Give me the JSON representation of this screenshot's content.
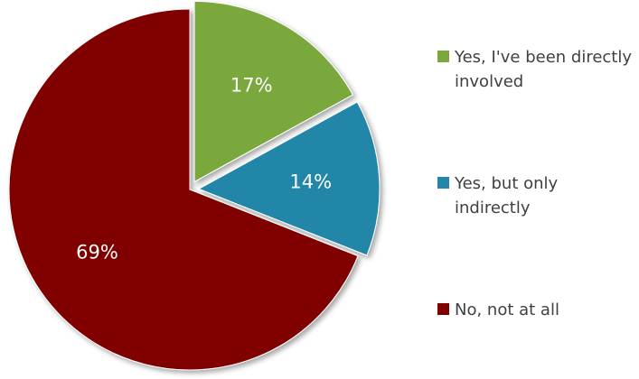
{
  "chart_data": {
    "type": "pie",
    "categories": [
      "Yes, I've been directly involved",
      "Yes, but only indirectly",
      "No, not at all"
    ],
    "values": [
      17,
      14,
      69
    ],
    "data_labels": [
      "17%",
      "14%",
      "69%"
    ],
    "colors": [
      "#7aa83c",
      "#2486a8",
      "#800000"
    ],
    "legend_position": "right",
    "exploded_slices": [
      "Yes, I've been directly involved",
      "Yes, but only indirectly"
    ],
    "title": ""
  },
  "legend": {
    "items": [
      {
        "label": "Yes, I've been directly involved",
        "color": "#7aa83c"
      },
      {
        "label": "Yes, but only indirectly",
        "color": "#2486a8"
      },
      {
        "label": "No, not at all",
        "color": "#800000"
      }
    ]
  }
}
